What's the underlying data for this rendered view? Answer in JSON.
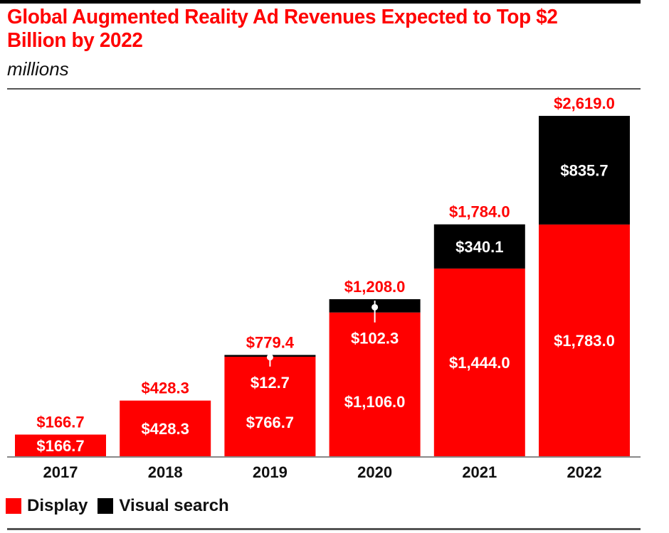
{
  "title": "Global Augmented Reality Ad Revenues Expected to Top $2 Billion by 2022",
  "subtitle": "millions",
  "colors": {
    "display": "#ff0000",
    "visual_search": "#000000",
    "total_label": "#ff0000",
    "inner_label": "#ffffff"
  },
  "chart_data": {
    "type": "bar",
    "stacked": true,
    "title": "Global Augmented Reality Ad Revenues Expected to Top $2 Billion by 2022",
    "subtitle": "millions",
    "xlabel": "",
    "ylabel": "",
    "categories": [
      "2017",
      "2018",
      "2019",
      "2020",
      "2021",
      "2022"
    ],
    "series": [
      {
        "name": "Display",
        "values": [
          166.7,
          428.3,
          766.7,
          1106.0,
          1444.0,
          1783.0
        ],
        "labels": [
          "$166.7",
          "$428.3",
          "$766.7",
          "$1,106.0",
          "$1,444.0",
          "$1,783.0"
        ]
      },
      {
        "name": "Visual search",
        "values": [
          0,
          0,
          12.7,
          102.3,
          340.1,
          835.7
        ],
        "labels": [
          "",
          "",
          "$12.7",
          "$102.3",
          "$340.1",
          "$835.7"
        ]
      }
    ],
    "totals": [
      166.7,
      428.3,
      779.4,
      1208.0,
      1784.0,
      2619.0
    ],
    "total_labels": [
      "$166.7",
      "$428.3",
      "$779.4",
      "$1,208.0",
      "$1,784.0",
      "$2,619.0"
    ],
    "ylim": [
      0,
      2619
    ],
    "grid": false,
    "legend": "bottom-left"
  },
  "legend": [
    {
      "label": "Display",
      "color": "#ff0000"
    },
    {
      "label": "Visual search",
      "color": "#000000"
    }
  ]
}
